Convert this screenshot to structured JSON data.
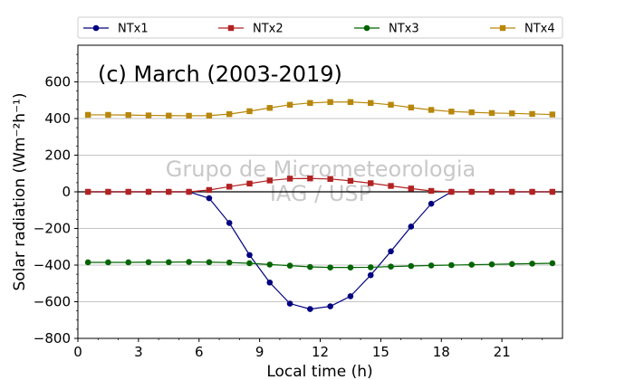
{
  "chart_data": {
    "type": "line",
    "title": "(c) March (2003-2019)",
    "xlabel": "Local time (h)",
    "ylabel": "Solar radiation (Wm⁻²h⁻¹)",
    "xlim": [
      0,
      24
    ],
    "ylim": [
      -800,
      800
    ],
    "xticks": [
      0,
      3,
      6,
      9,
      12,
      15,
      18,
      21
    ],
    "yticks": [
      -800,
      -600,
      -400,
      -200,
      0,
      200,
      400,
      600
    ],
    "grid": "horizontal",
    "legend_position": "top",
    "watermark": [
      "Grupo de Micrometeorologia",
      "IAG / USP"
    ],
    "x": [
      0.5,
      1.5,
      2.5,
      3.5,
      4.5,
      5.5,
      6.5,
      7.5,
      8.5,
      9.5,
      10.5,
      11.5,
      12.5,
      13.5,
      14.5,
      15.5,
      16.5,
      17.5,
      18.5,
      19.5,
      20.5,
      21.5,
      22.5,
      23.5
    ],
    "series": [
      {
        "name": "NTx1",
        "color": "#000080",
        "marker": "circle",
        "values": [
          0,
          0,
          0,
          0,
          0,
          0,
          -35,
          -170,
          -345,
          -495,
          -610,
          -640,
          -625,
          -570,
          -455,
          -325,
          -190,
          -65,
          0,
          0,
          0,
          0,
          0,
          0
        ]
      },
      {
        "name": "NTx2",
        "color": "#b22222",
        "marker": "square",
        "values": [
          0,
          0,
          0,
          0,
          0,
          0,
          10,
          28,
          45,
          62,
          72,
          73,
          70,
          60,
          47,
          32,
          18,
          5,
          0,
          0,
          0,
          0,
          0,
          0
        ]
      },
      {
        "name": "NTx3",
        "color": "#006400",
        "marker": "circle",
        "values": [
          -385,
          -385,
          -385,
          -384,
          -384,
          -383,
          -384,
          -386,
          -390,
          -397,
          -403,
          -410,
          -413,
          -413,
          -412,
          -408,
          -405,
          -402,
          -400,
          -398,
          -396,
          -394,
          -392,
          -390
        ]
      },
      {
        "name": "NTx4",
        "color": "#b8860b",
        "marker": "square",
        "values": [
          420,
          420,
          419,
          417,
          416,
          415,
          416,
          424,
          440,
          458,
          475,
          485,
          490,
          490,
          485,
          475,
          460,
          447,
          438,
          434,
          430,
          428,
          425,
          422
        ]
      }
    ]
  }
}
